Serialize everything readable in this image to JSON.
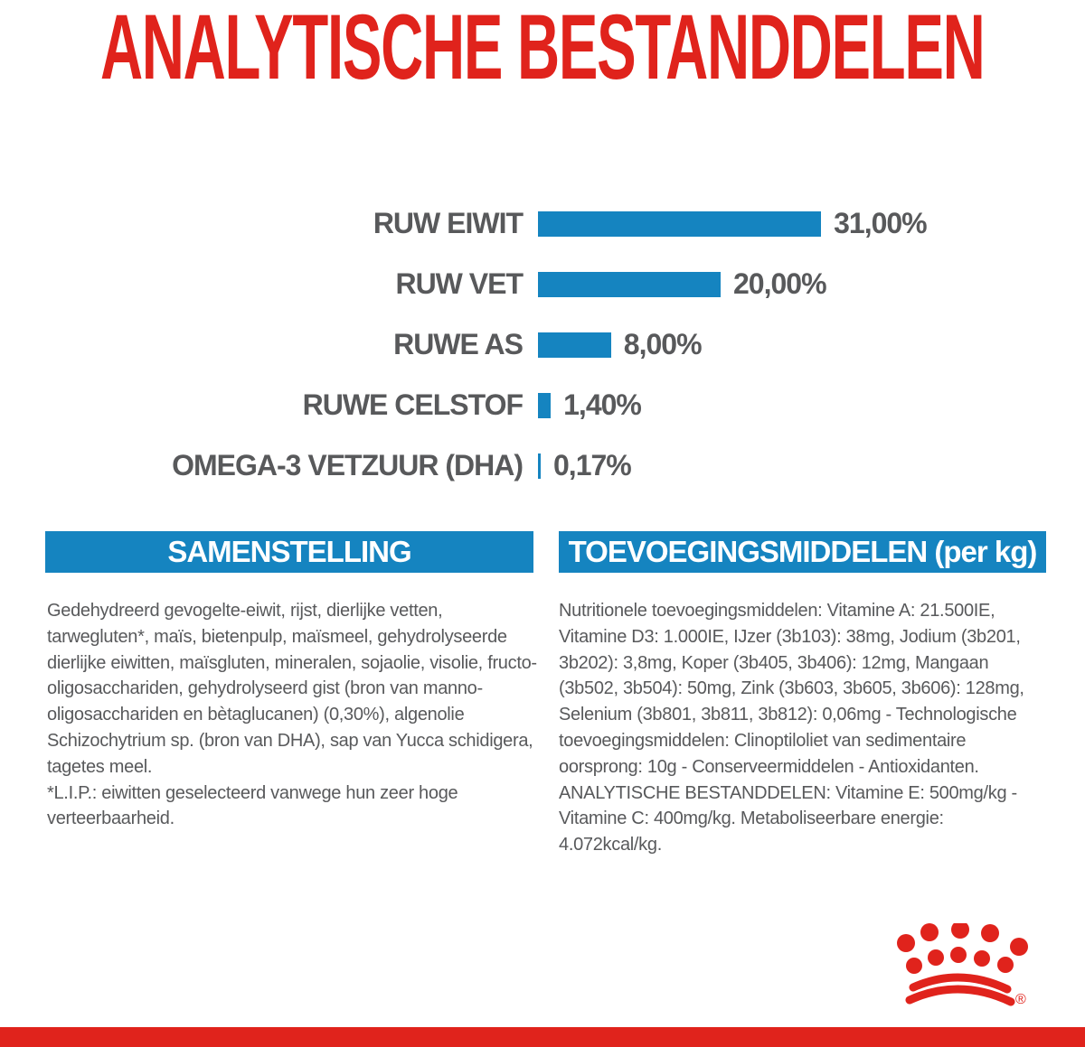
{
  "page": {
    "title": "ANALYTISCHE BESTANDDELEN"
  },
  "chart_data": {
    "type": "bar",
    "orientation": "horizontal",
    "title": "ANALYTISCHE BESTANDDELEN",
    "xlabel": "",
    "ylabel": "",
    "xlim": [
      0,
      31
    ],
    "grid": false,
    "legend": false,
    "categories": [
      "RUW EIWIT",
      "RUW VET",
      "RUWE AS",
      "RUWE CELSTOF",
      "OMEGA-3 VETZUUR (DHA)"
    ],
    "values": [
      31.0,
      20.0,
      8.0,
      1.4,
      0.17
    ],
    "value_labels": [
      "31,00%",
      "20,00%",
      "8,00%",
      "1,40%",
      "0,17%"
    ],
    "bar_color": "#1584c0",
    "label_color": "#58595b"
  },
  "sections": {
    "samenstelling": {
      "header": "SAMENSTELLING",
      "body": "Gedehydreerd gevogelte-eiwit, rijst, dierlijke vetten, tarwegluten*, maïs, bietenpulp, maïsmeel, gehydrolyseerde dierlijke eiwitten, maïsgluten, mineralen, sojaolie, visolie, fructo-oligosacchariden, gehydrolyseerd gist (bron van manno-oligosacchariden en bètaglucanen) (0,30%), algenolie Schizochytrium sp. (bron van DHA), sap van Yucca schidigera, tagetes meel.",
      "footnote": "*L.I.P.: eiwitten geselecteerd vanwege hun zeer hoge verteerbaarheid."
    },
    "toevoegingsmiddelen": {
      "header": "TOEVOEGINGSMIDDELEN (per kg)",
      "body": "Nutritionele toevoegingsmiddelen: Vitamine A: 21.500IE, Vitamine D3: 1.000IE, IJzer (3b103): 38mg, Jodium (3b201, 3b202): 3,8mg, Koper (3b405, 3b406): 12mg, Mangaan (3b502, 3b504): 50mg, Zink (3b603, 3b605, 3b606): 128mg, Selenium (3b801, 3b811, 3b812): 0,06mg - Technologische toevoegingsmiddelen: Clinoptiloliet van sedimentaire oorsprong: 10g - Conserveermiddelen - Antioxidanten. ANALYTISCHE BESTANDDELEN: Vitamine E: 500mg/kg - Vitamine C: 400mg/kg. Metaboliseerbare energie: 4.072kcal/kg."
    }
  },
  "branding": {
    "logo_name": "royal-canin-crown",
    "registered_mark": "®",
    "logo_color": "#e0231c"
  },
  "colors": {
    "accent_red": "#e0231c",
    "accent_blue": "#1584c0",
    "text_gray": "#58595b"
  }
}
